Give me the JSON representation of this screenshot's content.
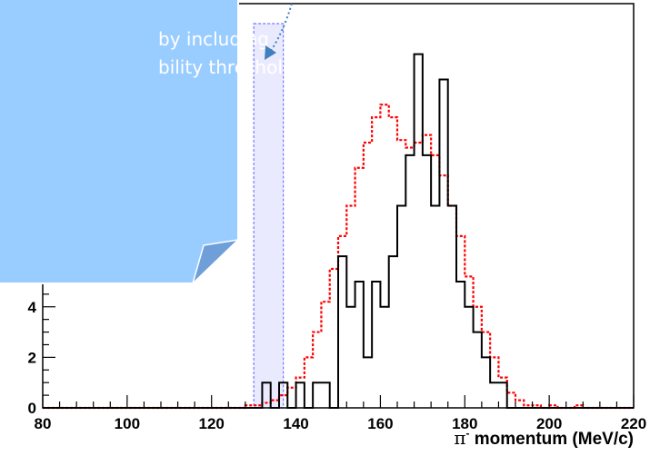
{
  "chart_data": {
    "type": "histogram",
    "xlabel": "π⁻ momentum (MeV/c)",
    "xlabel_greek": "π",
    "xlabel_sup": "-",
    "xlabel_rest": " momentum (MeV/c)",
    "xlim": [
      80,
      220
    ],
    "ylim": [
      0,
      16
    ],
    "x_ticks": [
      80,
      100,
      120,
      140,
      160,
      180,
      200,
      220
    ],
    "y_ticks": [
      0,
      2,
      4
    ],
    "grid": false,
    "bin_width": 2,
    "series": [
      {
        "style": "solid-black-step",
        "color": "#000000",
        "x": [
          80,
          82,
          84,
          86,
          88,
          90,
          92,
          94,
          96,
          98,
          100,
          102,
          104,
          106,
          108,
          110,
          112,
          114,
          116,
          118,
          120,
          122,
          124,
          126,
          128,
          130,
          132,
          134,
          136,
          138,
          140,
          142,
          144,
          146,
          148,
          150,
          152,
          154,
          156,
          158,
          160,
          162,
          164,
          166,
          168,
          170,
          172,
          174,
          176,
          178,
          180,
          182,
          184,
          186,
          188,
          190,
          192,
          194,
          196,
          198,
          200,
          202,
          204,
          206,
          208,
          210,
          212,
          214,
          216,
          218
        ],
        "values": [
          0,
          0,
          0,
          0,
          0,
          0,
          0,
          0,
          0,
          0,
          0,
          0,
          0,
          0,
          0,
          0,
          0,
          0,
          0,
          0,
          0,
          0,
          0,
          0,
          0,
          0,
          1,
          0,
          1,
          0,
          1,
          0,
          1,
          1,
          0,
          6,
          4,
          5,
          2,
          5,
          4,
          6,
          8,
          10,
          14,
          10,
          8,
          13,
          8,
          5,
          4,
          3,
          2,
          1,
          1,
          0,
          0,
          0,
          0,
          0,
          0,
          0,
          0,
          0,
          0,
          0,
          0,
          0,
          0,
          0
        ]
      },
      {
        "style": "dashed-red-step",
        "color": "#ff0000",
        "x": [
          80,
          82,
          84,
          86,
          88,
          90,
          92,
          94,
          96,
          98,
          100,
          102,
          104,
          106,
          108,
          110,
          112,
          114,
          116,
          118,
          120,
          122,
          124,
          126,
          128,
          130,
          132,
          134,
          136,
          138,
          140,
          142,
          144,
          146,
          148,
          150,
          152,
          154,
          156,
          158,
          160,
          162,
          164,
          166,
          168,
          170,
          172,
          174,
          176,
          178,
          180,
          182,
          184,
          186,
          188,
          190,
          192,
          194,
          196,
          198,
          200,
          202,
          204,
          206,
          208,
          210,
          212,
          214,
          216,
          218
        ],
        "values": [
          0,
          0,
          0,
          0,
          0,
          0,
          0,
          0,
          0,
          0,
          0,
          0,
          0,
          0,
          0,
          0,
          0,
          0,
          0,
          0,
          0,
          0,
          0,
          0,
          0.1,
          0.1,
          0.2,
          0.3,
          0.5,
          0.8,
          1.2,
          2.0,
          3.0,
          4.2,
          5.5,
          6.8,
          8.0,
          9.5,
          10.5,
          11.5,
          12.0,
          11.5,
          10.6,
          10.3,
          10.5,
          10.8,
          10.0,
          9.2,
          8.0,
          6.8,
          5.2,
          4.0,
          3.0,
          2.0,
          1.2,
          0.6,
          0.3,
          0.1,
          0.1,
          0,
          0.1,
          0,
          0,
          0.1,
          0,
          0,
          0,
          0,
          0,
          0
        ]
      }
    ],
    "highlight": {
      "x_range": [
        130,
        137
      ],
      "color": "#7777ff"
    }
  },
  "callout": {
    "line1": "by including",
    "line2": "bility threshold",
    "fill": "#99ccff",
    "corner_fill": "#6f9fd8",
    "arrow_color": "#3f7fbf"
  }
}
